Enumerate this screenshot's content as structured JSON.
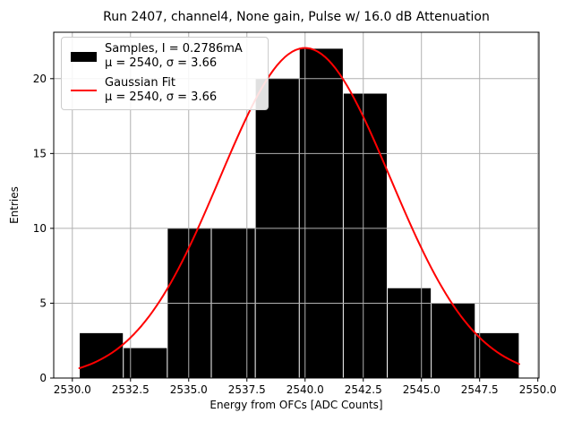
{
  "title": "Run 2407, channel4, None gain, Pulse w/ 16.0 dB Attenuation",
  "xlabel": "Energy from OFCs [ADC Counts]",
  "ylabel": "Entries",
  "legend": {
    "entries": [
      {
        "label": "Samples, I = 0.2786mA",
        "stats": "μ = 2540, σ = 3.66",
        "swatch": "black-patch"
      },
      {
        "label": "Gaussian Fit",
        "stats": "μ = 2540, σ = 3.66",
        "swatch": "red-line"
      }
    ],
    "position": "upper left"
  },
  "colors": {
    "bar": "#000000",
    "fit_line": "#ff0000",
    "grid": "#b0b0b0",
    "axis": "#000000",
    "background": "#ffffff"
  },
  "chart_data": {
    "type": "bar",
    "subtype": "histogram-with-gaussian-fit",
    "title": "Run 2407, channel4, None gain, Pulse w/ 16.0 dB Attenuation",
    "xlabel": "Energy from OFCs [ADC Counts]",
    "ylabel": "Entries",
    "bin_edges": [
      2530.3,
      2532.19,
      2534.08,
      2535.97,
      2537.86,
      2539.75,
      2541.64,
      2543.53,
      2545.42,
      2547.31,
      2549.2
    ],
    "counts": [
      3,
      2,
      10,
      10,
      20,
      22,
      19,
      6,
      5,
      3
    ],
    "total_entries": 100,
    "fit": {
      "shape": "gaussian",
      "mu": 2540,
      "sigma": 3.66,
      "amplitude": 22.05,
      "x_range": [
        2530.3,
        2549.2
      ]
    },
    "xlim": [
      2529.2,
      2550.05
    ],
    "ylim": [
      0,
      23.1
    ],
    "xticks": [
      2530.0,
      2532.5,
      2535.0,
      2537.5,
      2540.0,
      2542.5,
      2545.0,
      2547.5,
      2550.0
    ],
    "xtick_labels": [
      "2530.0",
      "2532.5",
      "2535.0",
      "2537.5",
      "2540.0",
      "2542.5",
      "2545.0",
      "2547.5",
      "2550.0"
    ],
    "yticks": [
      0,
      5,
      10,
      15,
      20
    ],
    "ytick_labels": [
      "0",
      "5",
      "10",
      "15",
      "20"
    ],
    "grid": true,
    "grid_over_bars": true,
    "legend_position": "upper left"
  }
}
